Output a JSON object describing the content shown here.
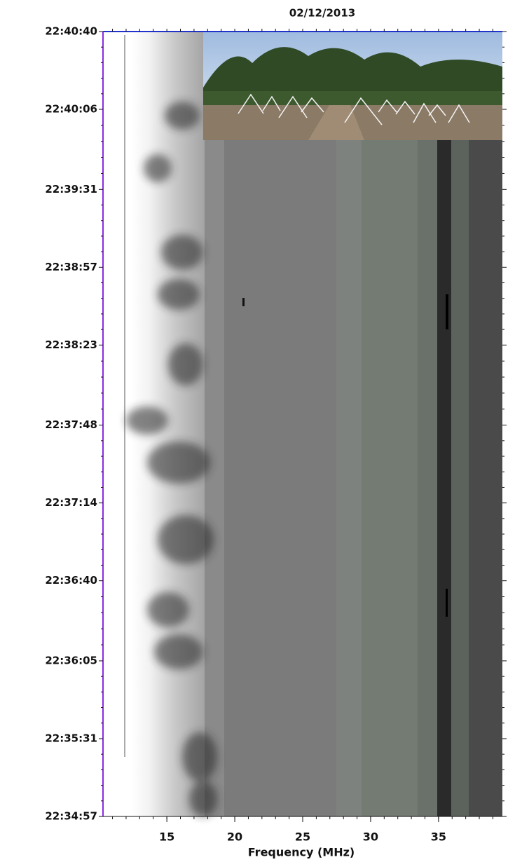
{
  "chart_data": {
    "type": "spectrogram",
    "title": "02/12/2013",
    "x_label": "Frequency (MHz)",
    "xlim": [
      10.3,
      39.7
    ],
    "xticks": [
      15,
      20,
      25,
      30,
      35
    ],
    "ylim": [
      "22:34:57",
      "22:40:40"
    ],
    "yticks": [
      "22:40:40",
      "22:40:06",
      "22:39:31",
      "22:38:57",
      "22:38:23",
      "22:37:48",
      "22:37:14",
      "22:36:40",
      "22:36:05",
      "22:35:31",
      "22:34:57"
    ]
  }
}
